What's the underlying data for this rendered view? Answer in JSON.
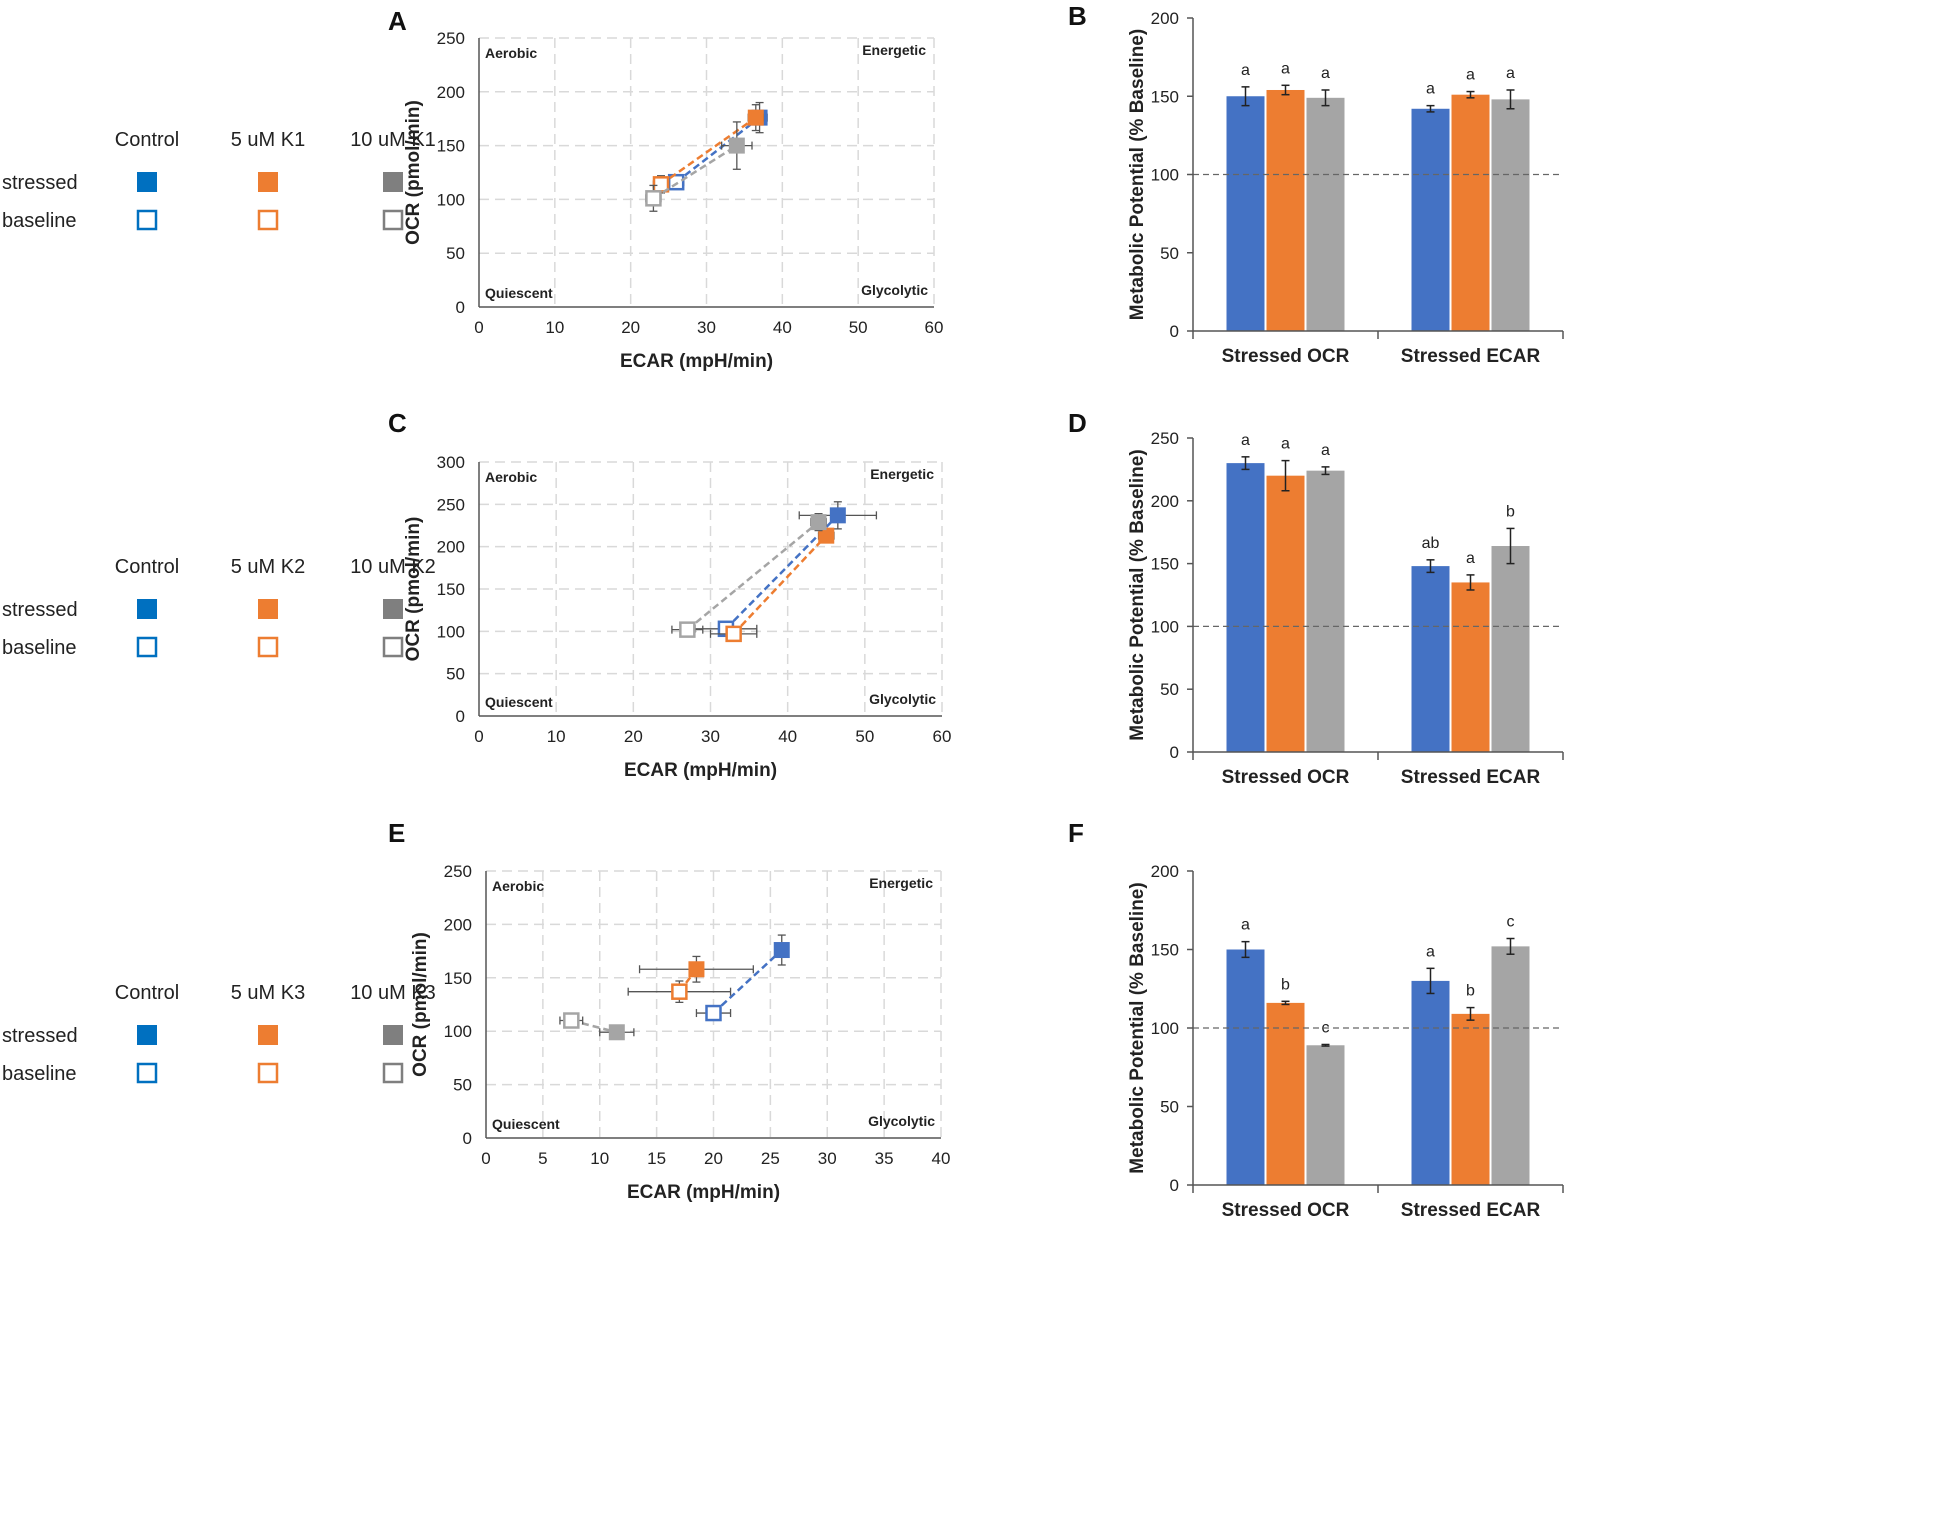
{
  "colors": {
    "control": "#4472C4",
    "k5": "#ED7D31",
    "k10": "#A5A5A5",
    "legend_control": "#0070C0",
    "legend_k5": "#ED7D31",
    "legend_k10": "#7F7F7F",
    "grid": "#D9D9D9",
    "axis": "#555555",
    "baseline_line": "#666666"
  },
  "legends": [
    {
      "headers": [
        "Control",
        "5 uM K1",
        "10 uM K1"
      ],
      "rows": [
        "stressed",
        "baseline"
      ]
    },
    {
      "headers": [
        "Control",
        "5 uM K2",
        "10 uM K2"
      ],
      "rows": [
        "stressed",
        "baseline"
      ]
    },
    {
      "headers": [
        "Control",
        "5 uM K3",
        "10 uM K3"
      ],
      "rows": [
        "stressed",
        "baseline"
      ]
    }
  ],
  "chart_data": [
    {
      "panel": "A",
      "type": "scatter",
      "xlabel": "ECAR (mpH/min)",
      "ylabel": "OCR (pmol/min)",
      "xlim": [
        0,
        60
      ],
      "ylim": [
        0,
        250
      ],
      "xticks": [
        0,
        10,
        20,
        30,
        40,
        50,
        60
      ],
      "yticks": [
        0,
        50,
        100,
        150,
        200,
        250
      ],
      "quadrants": {
        "top_left": "Aerobic",
        "top_right": "Energetic",
        "bottom_left": "Quiescent",
        "bottom_right": "Glycolytic"
      },
      "series": [
        {
          "name": "Control",
          "baseline": {
            "x": 26,
            "y": 116,
            "xerr": 1,
            "yerr": 4
          },
          "stressed": {
            "x": 37,
            "y": 176,
            "xerr": 1,
            "yerr": 14
          }
        },
        {
          "name": "5 uM",
          "baseline": {
            "x": 24,
            "y": 114,
            "xerr": 1,
            "yerr": 8
          },
          "stressed": {
            "x": 36.5,
            "y": 176,
            "xerr": 1,
            "yerr": 12
          }
        },
        {
          "name": "10 uM",
          "baseline": {
            "x": 23,
            "y": 101,
            "xerr": 1,
            "yerr": 12
          },
          "stressed": {
            "x": 34,
            "y": 150,
            "xerr": 2,
            "yerr": 22
          }
        }
      ]
    },
    {
      "panel": "B",
      "type": "bar",
      "ylabel": "Metabolic Potential (% Baseline)",
      "ylim": [
        0,
        200
      ],
      "yticks": [
        0,
        50,
        100,
        150,
        200
      ],
      "reference_line": 100,
      "categories": [
        "Stressed OCR",
        "Stressed ECAR"
      ],
      "series": [
        {
          "name": "Control",
          "values": [
            150,
            142
          ],
          "errors": [
            6,
            2
          ]
        },
        {
          "name": "5 uM",
          "values": [
            154,
            151
          ],
          "errors": [
            3,
            2
          ]
        },
        {
          "name": "10 uM",
          "values": [
            149,
            148
          ],
          "errors": [
            5,
            6
          ]
        }
      ],
      "labels": [
        [
          "a",
          "a",
          "a"
        ],
        [
          "a",
          "a",
          "a"
        ]
      ]
    },
    {
      "panel": "C",
      "type": "scatter",
      "xlabel": "ECAR (mpH/min)",
      "ylabel": "OCR (pmol/min)",
      "xlim": [
        0,
        60
      ],
      "ylim": [
        0,
        300
      ],
      "xticks": [
        0,
        10,
        20,
        30,
        40,
        50,
        60
      ],
      "yticks": [
        0,
        50,
        100,
        150,
        200,
        250,
        300
      ],
      "quadrants": {
        "top_left": "Aerobic",
        "top_right": "Energetic",
        "bottom_left": "Quiescent",
        "bottom_right": "Glycolytic"
      },
      "series": [
        {
          "name": "Control",
          "baseline": {
            "x": 32,
            "y": 103,
            "xerr": 4,
            "yerr": 5
          },
          "stressed": {
            "x": 46.5,
            "y": 237,
            "xerr": 5,
            "yerr": 16
          }
        },
        {
          "name": "5 uM",
          "baseline": {
            "x": 33,
            "y": 97,
            "xerr": 3,
            "yerr": 4
          },
          "stressed": {
            "x": 45,
            "y": 213,
            "xerr": 1,
            "yerr": 4
          }
        },
        {
          "name": "10 uM",
          "baseline": {
            "x": 27,
            "y": 102,
            "xerr": 2,
            "yerr": 4
          },
          "stressed": {
            "x": 44,
            "y": 229,
            "xerr": 1,
            "yerr": 10
          }
        }
      ]
    },
    {
      "panel": "D",
      "type": "bar",
      "ylabel": "Metabolic Potential (% Baseline)",
      "ylim": [
        0,
        250
      ],
      "yticks": [
        0,
        50,
        100,
        150,
        200,
        250
      ],
      "reference_line": 100,
      "categories": [
        "Stressed OCR",
        "Stressed ECAR"
      ],
      "series": [
        {
          "name": "Control",
          "values": [
            230,
            148
          ],
          "errors": [
            5,
            5
          ]
        },
        {
          "name": "5 uM",
          "values": [
            220,
            135
          ],
          "errors": [
            12,
            6
          ]
        },
        {
          "name": "10 uM",
          "values": [
            224,
            164
          ],
          "errors": [
            3,
            14
          ]
        }
      ],
      "labels": [
        [
          "a",
          "a",
          "a"
        ],
        [
          "ab",
          "a",
          "b"
        ]
      ]
    },
    {
      "panel": "E",
      "type": "scatter",
      "xlabel": "ECAR (mpH/min)",
      "ylabel": "OCR (pmol/min)",
      "xlim": [
        0,
        40
      ],
      "ylim": [
        0,
        250
      ],
      "xticks": [
        0,
        5,
        10,
        15,
        20,
        25,
        30,
        35,
        40
      ],
      "yticks": [
        0,
        50,
        100,
        150,
        200,
        250
      ],
      "quadrants": {
        "top_left": "Aerobic",
        "top_right": "Energetic",
        "bottom_left": "Quiescent",
        "bottom_right": "Glycolytic"
      },
      "series": [
        {
          "name": "Control",
          "baseline": {
            "x": 20,
            "y": 117,
            "xerr": 1.5,
            "yerr": 4
          },
          "stressed": {
            "x": 26,
            "y": 176,
            "xerr": 0.5,
            "yerr": 14
          }
        },
        {
          "name": "5 uM",
          "baseline": {
            "x": 17,
            "y": 137,
            "xerr": 4.5,
            "yerr": 10
          },
          "stressed": {
            "x": 18.5,
            "y": 158,
            "xerr": 5,
            "yerr": 12
          }
        },
        {
          "name": "10 uM",
          "baseline": {
            "x": 7.5,
            "y": 110,
            "xerr": 1,
            "yerr": 4
          },
          "stressed": {
            "x": 11.5,
            "y": 99,
            "xerr": 1.5,
            "yerr": 4
          }
        }
      ]
    },
    {
      "panel": "F",
      "type": "bar",
      "ylabel": "Metabolic Potential (% Baseline)",
      "ylim": [
        0,
        200
      ],
      "yticks": [
        0,
        50,
        100,
        150,
        200
      ],
      "reference_line": 100,
      "categories": [
        "Stressed OCR",
        "Stressed ECAR"
      ],
      "series": [
        {
          "name": "Control",
          "values": [
            150,
            130
          ],
          "errors": [
            5,
            8
          ]
        },
        {
          "name": "5 uM",
          "values": [
            116,
            109
          ],
          "errors": [
            1,
            4
          ]
        },
        {
          "name": "10 uM",
          "values": [
            89,
            152
          ],
          "errors": [
            0.5,
            5
          ]
        }
      ],
      "labels": [
        [
          "a",
          "b",
          "c"
        ],
        [
          "a",
          "b",
          "c"
        ]
      ]
    }
  ]
}
